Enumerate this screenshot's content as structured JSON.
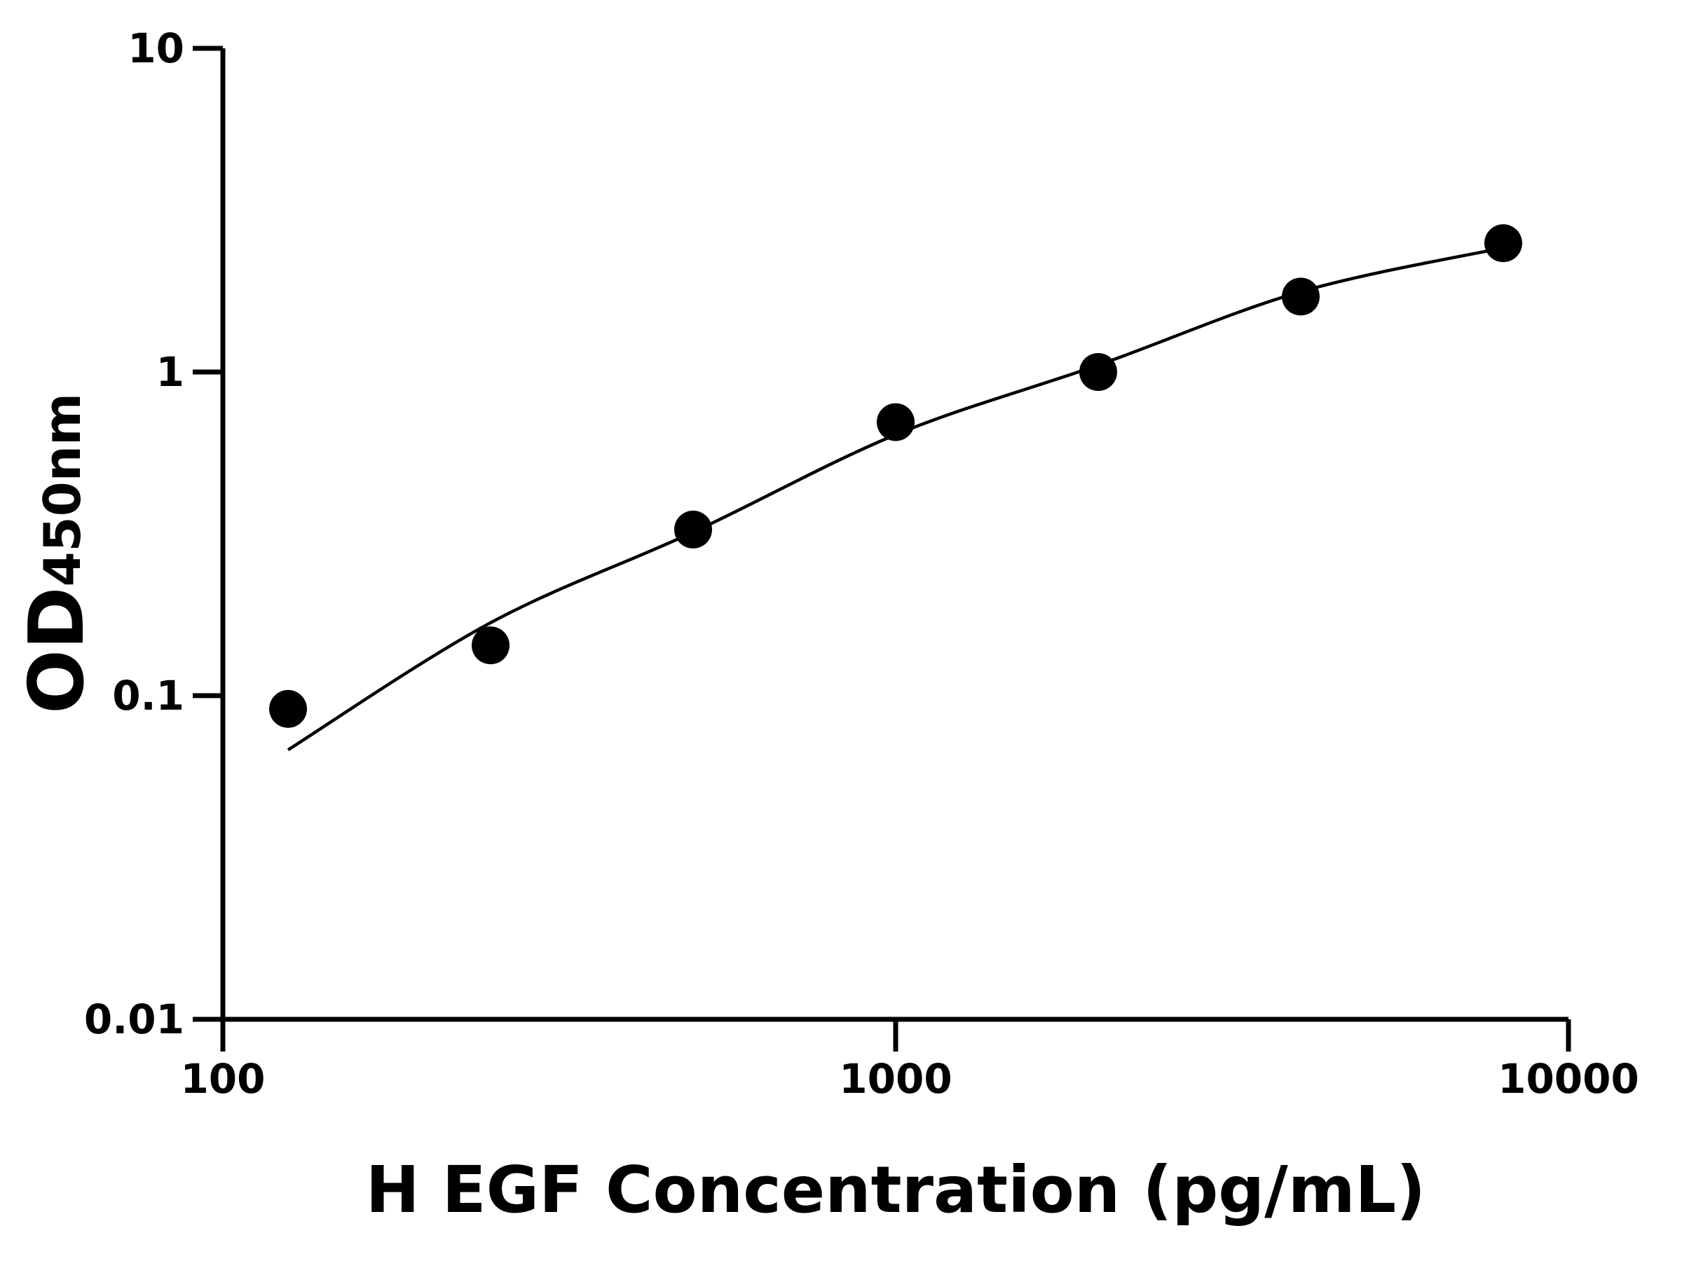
{
  "chart_data": {
    "type": "scatter",
    "xlabel": "H EGF Concentration (pg/mL)",
    "ylabel": "OD",
    "ylabel_sub": "450nm",
    "x": [
      125,
      250,
      500,
      1000,
      2000,
      4000,
      8000
    ],
    "series": [
      {
        "color": "#000000",
        "style": "points",
        "values": [
          0.091,
          0.143,
          0.326,
          0.7,
          1.0,
          1.71,
          2.5
        ]
      },
      {
        "color": "#000000",
        "style": "line",
        "values": [
          0.068,
          0.168,
          0.32,
          0.64,
          1.05,
          1.77,
          2.42
        ]
      }
    ],
    "xscale": "log",
    "yscale": "log",
    "xlim": [
      100,
      10000
    ],
    "xticks": [
      100,
      1000,
      10000
    ],
    "ylim": [
      0.01,
      10
    ],
    "yticks": [
      0.01,
      0.1,
      1,
      10
    ],
    "grid": false
  }
}
